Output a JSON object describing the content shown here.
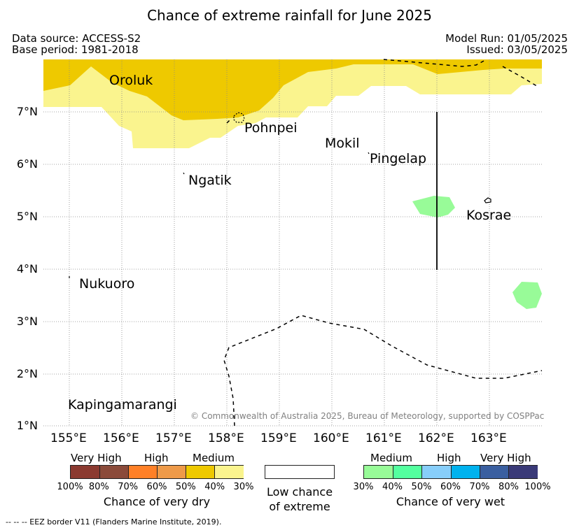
{
  "title": "Chance of extreme rainfall for June 2025",
  "meta": {
    "data_source": "Data source: ACCESS-S2",
    "base_period": "Base period: 1981-2018",
    "model_run": "Model Run: 01/05/2025",
    "issued": "Issued: 03/05/2025"
  },
  "map": {
    "lat_labels": [
      "7°N",
      "6°N",
      "5°N",
      "4°N",
      "3°N",
      "2°N",
      "1°N"
    ],
    "lon_labels": [
      "155°E",
      "156°E",
      "157°E",
      "158°E",
      "159°E",
      "160°E",
      "161°E",
      "162°E",
      "163°E"
    ],
    "places": {
      "oroluk": "Oroluk",
      "pohnpei": "Pohnpei",
      "mokil": "Mokil",
      "pingelap": "Pingelap",
      "ngatik": "Ngatik",
      "kosrae": "Kosrae",
      "nukuoro": "Nukuoro",
      "kapingamarangi": "Kapingamarangi"
    },
    "copyright": "© Commonwealth of Australia 2025, Bureau of Meteorology, supported by COSPPac",
    "colors": {
      "dry_medium_40_50": "#EEC900",
      "dry_low_30_40": "#FAF48E",
      "wet_medium_30_40": "#98FB98"
    }
  },
  "legend": {
    "dry": {
      "heads": [
        "Very High",
        "High",
        "Medium"
      ],
      "ticks": [
        "100%",
        "80%",
        "70%",
        "60%",
        "50%",
        "40%",
        "30%"
      ],
      "colors": [
        "#8B3A30",
        "#8B4B3A",
        "#FF8027",
        "#EE9A49",
        "#EEC900",
        "#FAF48E"
      ],
      "caption": "Chance of very dry"
    },
    "low": {
      "caption_line1": "Low chance",
      "caption_line2": "of extreme"
    },
    "wet": {
      "heads": [
        "Medium",
        "High",
        "Very High"
      ],
      "ticks": [
        "30%",
        "40%",
        "50%",
        "60%",
        "70%",
        "80%",
        "100%"
      ],
      "colors": [
        "#98FB98",
        "#54FF9F",
        "#87CEFA",
        "#00B2EE",
        "#3A5FA0",
        "#3A3A78"
      ],
      "caption": "Chance of very wet"
    }
  },
  "footnote": "--  --  -- EEZ border V11 (Flanders Marine Institute, 2019)."
}
